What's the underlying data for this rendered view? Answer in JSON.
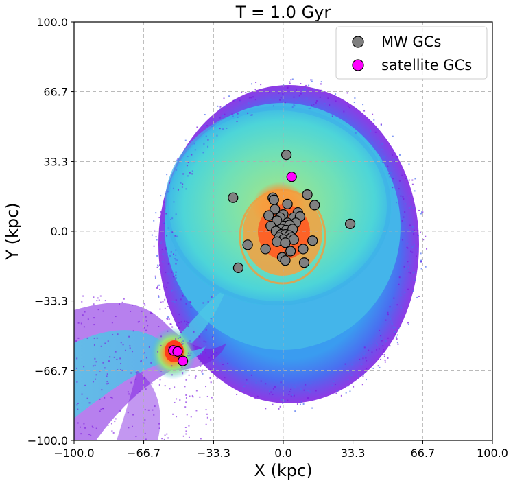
{
  "chart_data": {
    "type": "scatter",
    "title": "T = 1.0 Gyr",
    "xlabel": "X (kpc)",
    "ylabel": "Y (kpc)",
    "xlim": [
      -100,
      100
    ],
    "ylim": [
      -100,
      100
    ],
    "x_ticks": [
      -100,
      -66.7,
      -33.3,
      0,
      33.3,
      66.7,
      100
    ],
    "y_ticks": [
      -100,
      -66.7,
      -33.3,
      0,
      33.3,
      66.7,
      100
    ],
    "x_tick_labels": [
      "−100.0",
      "−66.7",
      "−33.3",
      "0.0",
      "33.3",
      "66.7",
      "100.0"
    ],
    "y_tick_labels": [
      "−100.0",
      "−66.7",
      "−33.3",
      "0.0",
      "33.3",
      "66.7",
      "100.0"
    ],
    "grid": true,
    "legend_position": "top-right",
    "background": "simulated particle density map (rainbow colormap): Milky Way disk with tidally disrupted satellite and stellar stream",
    "colors": {
      "mw_marker": "#808080",
      "satellite_marker": "#ff00ff",
      "marker_edge": "#000000",
      "density_high": "#e8502a",
      "density_mid": "#4fd8c8",
      "density_low": "#7b18e0"
    },
    "series": [
      {
        "name": "MW GCs",
        "color": "#808080",
        "points": [
          [
            1.5,
            36.5
          ],
          [
            -24,
            16
          ],
          [
            -5,
            16
          ],
          [
            -4.5,
            15
          ],
          [
            11.5,
            17.5
          ],
          [
            15,
            12.5
          ],
          [
            2,
            13
          ],
          [
            -4,
            10.5
          ],
          [
            7,
            9
          ],
          [
            -7,
            7.5
          ],
          [
            0,
            8
          ],
          [
            5,
            6.5
          ],
          [
            8,
            7
          ],
          [
            -1.5,
            6.5
          ],
          [
            -3,
            5
          ],
          [
            2,
            4
          ],
          [
            6,
            4
          ],
          [
            -6,
            2.5
          ],
          [
            0.5,
            2.5
          ],
          [
            3,
            3
          ],
          [
            -1,
            1
          ],
          [
            1.5,
            0.5
          ],
          [
            -3.5,
            0
          ],
          [
            4.5,
            1
          ],
          [
            -1,
            -1.5
          ],
          [
            1,
            -1.5
          ],
          [
            3,
            -2
          ],
          [
            -2,
            -3
          ],
          [
            0,
            -4
          ],
          [
            4,
            -3
          ],
          [
            5,
            -4
          ],
          [
            -3,
            -5
          ],
          [
            1,
            -5.5
          ],
          [
            14,
            -4.5
          ],
          [
            -17,
            -6.5
          ],
          [
            -8.5,
            -8.5
          ],
          [
            3.5,
            -9.5
          ],
          [
            9.5,
            -8.5
          ],
          [
            -0.5,
            -12.5
          ],
          [
            1,
            -14
          ],
          [
            10,
            -15
          ],
          [
            -21.5,
            -17.5
          ],
          [
            32,
            3.5
          ]
        ]
      },
      {
        "name": "satellite GCs",
        "color": "#ff00ff",
        "points": [
          [
            4,
            26
          ],
          [
            -52.5,
            -57
          ],
          [
            -50.5,
            -57.5
          ],
          [
            -48,
            -62
          ]
        ]
      }
    ]
  }
}
